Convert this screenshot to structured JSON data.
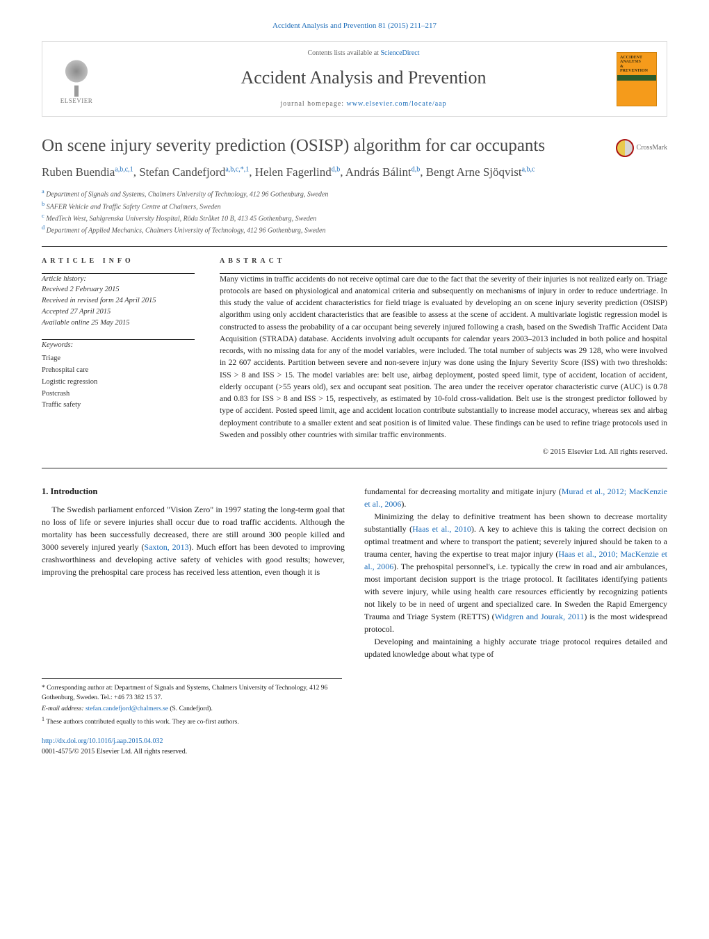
{
  "top_citation": "Accident Analysis and Prevention 81 (2015) 211–217",
  "header": {
    "publisher": "ELSEVIER",
    "contents_prefix": "Contents lists available at ",
    "contents_link": "ScienceDirect",
    "journal": "Accident Analysis and Prevention",
    "homepage_prefix": "journal homepage: ",
    "homepage_url": "www.elsevier.com/locate/aap",
    "cover_line1": "ACCIDENT",
    "cover_line2": "ANALYSIS",
    "cover_line3": "&",
    "cover_line4": "PREVENTION"
  },
  "crossmark": "CrossMark",
  "title": "On scene injury severity prediction (OSISP) algorithm for car occupants",
  "authors_html": "Ruben Buendia{a,b,c,1}, Stefan Candefjord{a,b,c,*,1}, Helen Fagerlind{d,b}, András Bálint{d,b}, Bengt Arne Sjöqvist{a,b,c}",
  "authors": [
    {
      "name": "Ruben Buendia",
      "sup": "a,b,c,1"
    },
    {
      "name": "Stefan Candefjord",
      "sup": "a,b,c,*,1"
    },
    {
      "name": "Helen Fagerlind",
      "sup": "d,b"
    },
    {
      "name": "András Bálint",
      "sup": "d,b"
    },
    {
      "name": "Bengt Arne Sjöqvist",
      "sup": "a,b,c"
    }
  ],
  "affiliations": [
    {
      "key": "a",
      "text": "Department of Signals and Systems, Chalmers University of Technology, 412 96 Gothenburg, Sweden"
    },
    {
      "key": "b",
      "text": "SAFER Vehicle and Traffic Safety Centre at Chalmers, Sweden"
    },
    {
      "key": "c",
      "text": "MedTech West, Sahlgrenska University Hospital, Röda Stråket 10 B, 413 45 Gothenburg, Sweden"
    },
    {
      "key": "d",
      "text": "Department of Applied Mechanics, Chalmers University of Technology, 412 96 Gothenburg, Sweden"
    }
  ],
  "article_info_label": "ARTICLE INFO",
  "abstract_label": "ABSTRACT",
  "history": {
    "label": "Article history:",
    "received": "Received 2 February 2015",
    "revised": "Received in revised form 24 April 2015",
    "accepted": "Accepted 27 April 2015",
    "online": "Available online 25 May 2015"
  },
  "keywords_label": "Keywords:",
  "keywords": [
    "Triage",
    "Prehospital care",
    "Logistic regression",
    "Postcrash",
    "Traffic safety"
  ],
  "abstract": "Many victims in traffic accidents do not receive optimal care due to the fact that the severity of their injuries is not realized early on. Triage protocols are based on physiological and anatomical criteria and subsequently on mechanisms of injury in order to reduce undertriage. In this study the value of accident characteristics for field triage is evaluated by developing an on scene injury severity prediction (OSISP) algorithm using only accident characteristics that are feasible to assess at the scene of accident. A multivariate logistic regression model is constructed to assess the probability of a car occupant being severely injured following a crash, based on the Swedish Traffic Accident Data Acquisition (STRADA) database. Accidents involving adult occupants for calendar years 2003–2013 included in both police and hospital records, with no missing data for any of the model variables, were included. The total number of subjects was 29 128, who were involved in 22 607 accidents. Partition between severe and non-severe injury was done using the Injury Severity Score (ISS) with two thresholds: ISS > 8 and ISS > 15. The model variables are: belt use, airbag deployment, posted speed limit, type of accident, location of accident, elderly occupant (>55 years old), sex and occupant seat position. The area under the receiver operator characteristic curve (AUC) is 0.78 and 0.83 for ISS > 8 and ISS > 15, respectively, as estimated by 10-fold cross-validation. Belt use is the strongest predictor followed by type of accident. Posted speed limit, age and accident location contribute substantially to increase model accuracy, whereas sex and airbag deployment contribute to a smaller extent and seat position is of limited value. These findings can be used to refine triage protocols used in Sweden and possibly other countries with similar traffic environments.",
  "copyright": "© 2015 Elsevier Ltd. All rights reserved.",
  "intro_heading": "1.  Introduction",
  "intro_p1": "The Swedish parliament enforced \"Vision Zero\" in 1997 stating the long-term goal that no loss of life or severe injuries shall occur due to road traffic accidents. Although the mortality has been successfully decreased, there are still around 300 people killed and 3000 severely injured yearly (",
  "intro_p1_link": "Saxton, 2013",
  "intro_p1_tail": "). Much effort has been devoted to improving crashworthiness and developing active safety of vehicles with good results; however, improving the prehospital care process has received less attention, even though it is",
  "col2_p1_lead": "fundamental for decreasing mortality and mitigate injury (",
  "col2_p1_link": "Murad et al., 2012; MacKenzie et al., 2006",
  "col2_p1_tail": ").",
  "col2_p2_a": "Minimizing the delay to definitive treatment has been shown to decrease mortality substantially (",
  "col2_p2_link1": "Haas et al., 2010",
  "col2_p2_b": "). A key to achieve this is taking the correct decision on optimal treatment and where to transport the patient; severely injured should be taken to a trauma center, having the expertise to treat major injury (",
  "col2_p2_link2": "Haas et al., 2010; MacKenzie et al., 2006",
  "col2_p2_c": "). The prehospital personnel's, i.e. typically the crew in road and air ambulances, most important decision support is the triage protocol. It facilitates identifying patients with severe injury, while using health care resources efficiently by recognizing patients not likely to be in need of urgent and specialized care. In Sweden the Rapid Emergency Trauma and Triage System (RETTS) (",
  "col2_p2_link3": "Widgren and Jourak, 2011",
  "col2_p2_d": ") is the most widespread protocol.",
  "col2_p3": "Developing and maintaining a highly accurate triage protocol requires detailed and updated knowledge about what type of",
  "footnotes": {
    "corr_label": "* Corresponding author at: Department of Signals and Systems, Chalmers University of Technology, 412 96 Gothenburg, Sweden. Tel.: +46 73 382 15 37.",
    "email_label": "E-mail address: ",
    "email": "stefan.candefjord@chalmers.se",
    "email_tail": " (S. Candefjord).",
    "equal": "These authors contributed equally to this work. They are co-first authors.",
    "equal_sup": "1"
  },
  "doi": {
    "url": "http://dx.doi.org/10.1016/j.aap.2015.04.032",
    "issn_line": "0001-4575/© 2015 Elsevier Ltd. All rights reserved."
  },
  "colors": {
    "link": "#1a6bb8",
    "text": "#1a1a1a",
    "muted": "#666666",
    "rule": "#222222",
    "cover_bg": "#f59b1b",
    "cover_band": "#2b5c2b"
  }
}
